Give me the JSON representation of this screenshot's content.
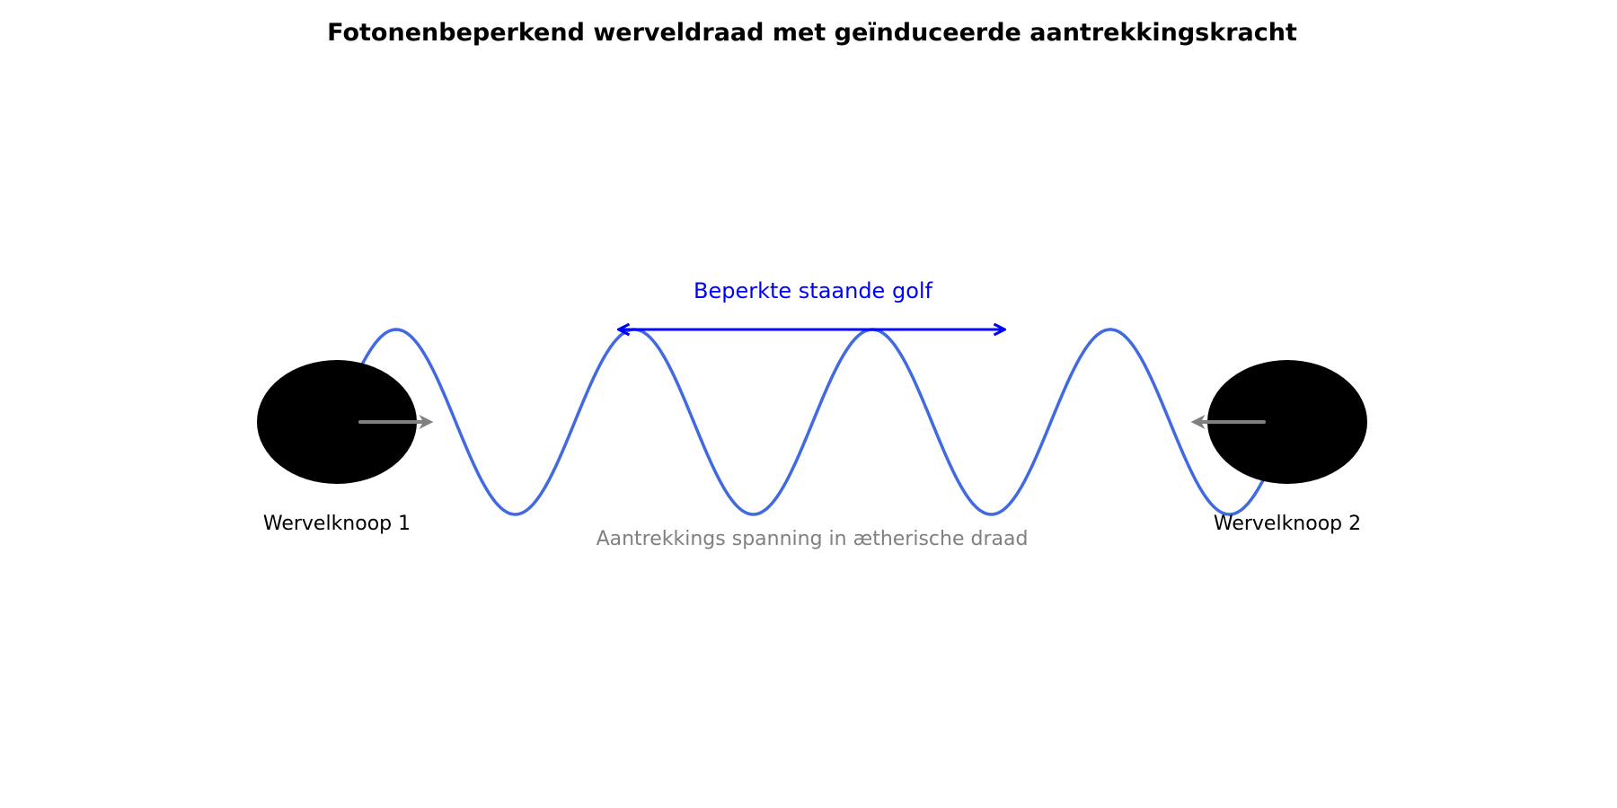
{
  "diagram": {
    "title": "Fotonenbeperkend werveldraad met geïnduceerde aantrekkingskracht",
    "nodes": [
      {
        "label": "Wervelknoop 1",
        "color": "#000000"
      },
      {
        "label": "Wervelknoop 2",
        "color": "#000000"
      }
    ],
    "wave": {
      "label": "Beperkte staande golf",
      "label_color": "#0000ff",
      "color": "#4169e1",
      "arrow_color": "#0000ff"
    },
    "tension": {
      "label": "Aantrekkings spanning in ætherische draad",
      "color": "#808080"
    }
  }
}
